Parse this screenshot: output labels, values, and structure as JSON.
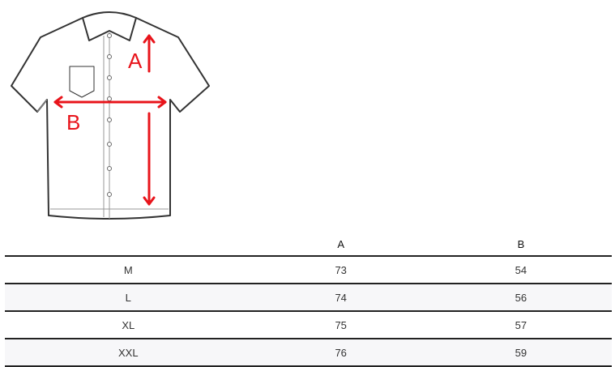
{
  "diagram": {
    "label_a": "A",
    "label_b": "B",
    "arrow_color": "#e8141b"
  },
  "table": {
    "headers": [
      "",
      "A",
      "B"
    ],
    "rows": [
      {
        "size": "M",
        "a": "73",
        "b": "54"
      },
      {
        "size": "L",
        "a": "74",
        "b": "56"
      },
      {
        "size": "XL",
        "a": "75",
        "b": "57"
      },
      {
        "size": "XXL",
        "a": "76",
        "b": "59"
      }
    ]
  }
}
